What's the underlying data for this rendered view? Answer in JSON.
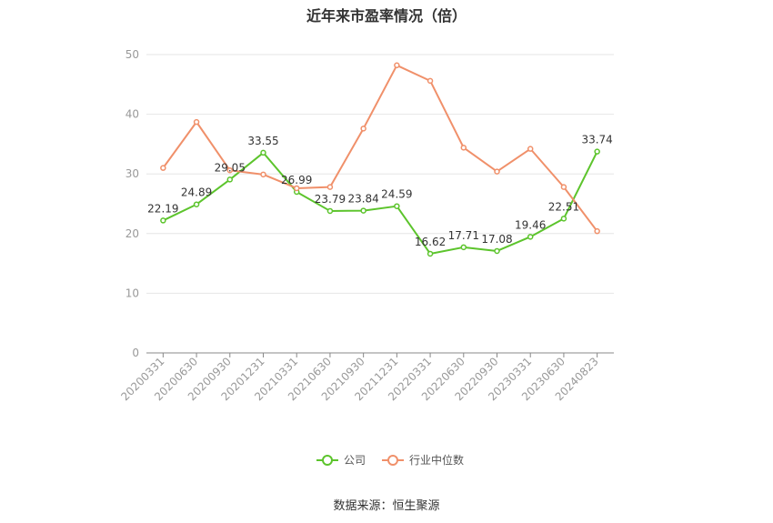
{
  "title": "近年来市盈率情况（倍）",
  "source": "数据来源：恒生聚源",
  "chart_data": {
    "type": "line",
    "title": "近年来市盈率情况（倍）",
    "categories": [
      "20200331",
      "20200630",
      "20200930",
      "20201231",
      "20210331",
      "20210630",
      "20210930",
      "20211231",
      "20220331",
      "20220630",
      "20220930",
      "20230331",
      "20230630",
      "20240823"
    ],
    "ylim": [
      0,
      50
    ],
    "yticks": [
      0,
      10,
      20,
      30,
      40,
      50
    ],
    "grid": true,
    "legend_position": "bottom",
    "series": [
      {
        "name": "公司",
        "color": "#5cc42c",
        "values": [
          22.19,
          24.89,
          29.05,
          33.55,
          26.99,
          23.79,
          23.84,
          24.59,
          16.62,
          17.71,
          17.08,
          19.46,
          22.51,
          33.74
        ],
        "labels": [
          "22.19",
          "24.89",
          "29.05",
          "33.55",
          "26.99",
          "23.79",
          "23.84",
          "24.59",
          "16.62",
          "17.71",
          "17.08",
          "19.46",
          "22.51",
          "33.74"
        ]
      },
      {
        "name": "行业中位数",
        "color": "#f0906a",
        "values": [
          31.0,
          38.7,
          30.6,
          29.9,
          27.6,
          27.8,
          37.6,
          48.2,
          45.6,
          34.4,
          30.4,
          34.2,
          27.8,
          20.4
        ]
      }
    ]
  }
}
